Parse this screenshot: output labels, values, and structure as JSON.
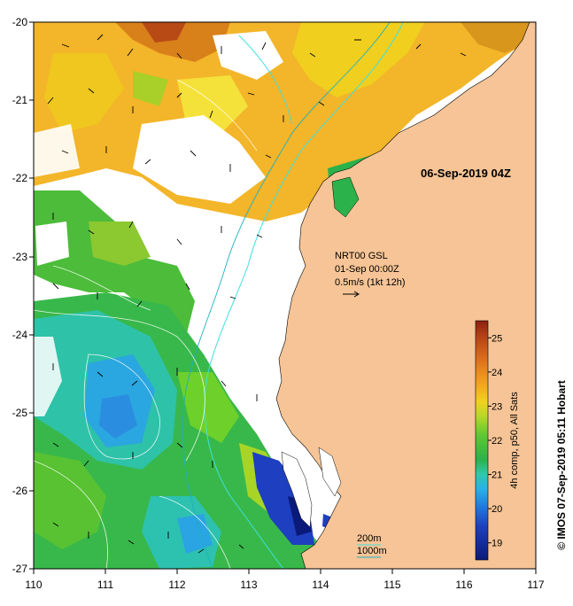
{
  "map": {
    "timestamp": "06-Sep-2019 04Z",
    "current_label": {
      "line1": "NRT00 GSL",
      "line2": "01-Sep 00:00Z",
      "line3": "0.5m/s (1kt 12h)"
    },
    "x_ticks": [
      "110",
      "111",
      "112",
      "113",
      "114",
      "115",
      "116",
      "117"
    ],
    "y_ticks": [
      "-20",
      "-21",
      "-22",
      "-23",
      "-24",
      "-25",
      "-26",
      "-27"
    ],
    "contour_legend": {
      "line1": "200m",
      "line2": "1000m"
    },
    "copyright": "© IMOS 07-Sep-2019 05:11 Hobart"
  },
  "colorbar": {
    "label": "4h comp, p50, All Sats",
    "ticks": [
      "25",
      "24",
      "23",
      "22",
      "21",
      "20",
      "19"
    ],
    "range": [
      18.5,
      25.5
    ]
  },
  "colors": {
    "land": "#f6c496",
    "cloud": "#ffffff",
    "contour_200": "#3ee0e0",
    "contour_1000": "#1db0c0"
  }
}
